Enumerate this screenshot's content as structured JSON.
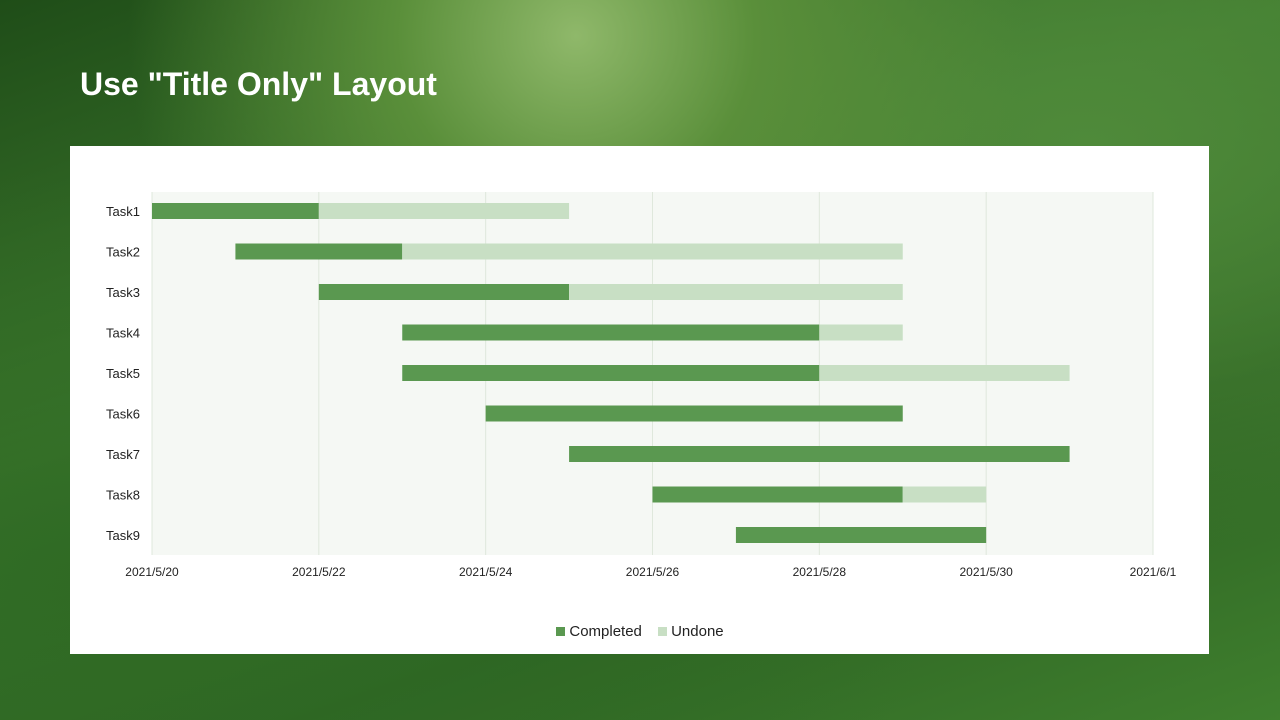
{
  "slide": {
    "title": "Use \"Title Only\" Layout"
  },
  "chart_data": {
    "type": "gantt",
    "x_axis": {
      "min": "2021/5/20",
      "max": "2021/6/1",
      "tick_labels": [
        "2021/5/20",
        "2021/5/22",
        "2021/5/24",
        "2021/5/26",
        "2021/5/28",
        "2021/5/30",
        "2021/6/1"
      ],
      "tick_days": [
        0,
        2,
        4,
        6,
        8,
        10,
        12
      ]
    },
    "categories": [
      "Task1",
      "Task2",
      "Task3",
      "Task4",
      "Task5",
      "Task6",
      "Task7",
      "Task8",
      "Task9"
    ],
    "start_day_offset": [
      0,
      1,
      2,
      3,
      3,
      4,
      5,
      6,
      7
    ],
    "series": [
      {
        "name": "Completed",
        "color": "#5a9850",
        "values_days": [
          2,
          2,
          3,
          5,
          5,
          5,
          6,
          3,
          3
        ]
      },
      {
        "name": "Undone",
        "color": "#c8dfc4",
        "values_days": [
          3,
          6,
          4,
          1,
          3,
          0,
          0,
          1,
          0
        ]
      }
    ],
    "legend_position": "bottom",
    "grid": true
  }
}
